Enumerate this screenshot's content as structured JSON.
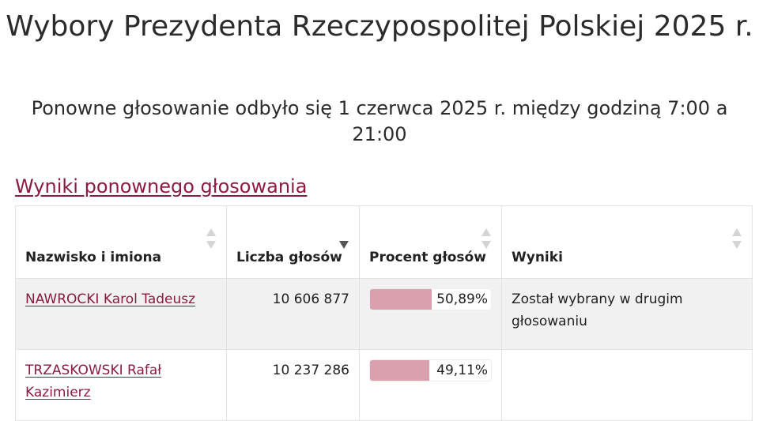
{
  "page": {
    "title": "Wybory Prezydenta Rzeczypospolitej Polskiej 2025 r.",
    "subtitle": "Ponowne głosowanie odbyło się 1 czerwca 2025 r. między godziną 7:00 a 21:00"
  },
  "section": {
    "link_label": "Wyniki ponownego głosowania"
  },
  "table": {
    "headers": {
      "name": "Nazwisko i imiona",
      "votes": "Liczba głosów",
      "percent": "Procent głosów",
      "result": "Wyniki"
    },
    "sort": {
      "active_column": "votes",
      "direction": "descending"
    },
    "rows": [
      {
        "name": "NAWROCKI Karol Tadeusz",
        "votes": "10 606 877",
        "percent_label": "50,89%",
        "percent_value": 50.89,
        "result": "Został wybrany w drugim głosowaniu"
      },
      {
        "name": "TRZASKOWSKI Rafał Kazimierz",
        "votes": "10 237 286",
        "percent_label": "49,11%",
        "percent_value": 49.11,
        "result": ""
      }
    ]
  },
  "colors": {
    "link": "#8a1b41",
    "bar_fill": "#d9a0ae",
    "row_stripe": "#f1f1f1"
  }
}
